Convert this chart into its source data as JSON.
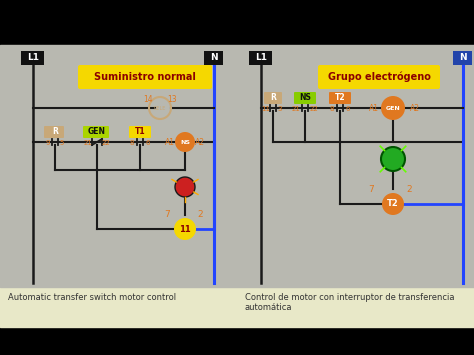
{
  "bg_color": "#000000",
  "diagram_bg": "#b8b8b0",
  "bottom_bg": "#e8e8c8",
  "title_left": "Automatic transfer switch motor control",
  "title_right": "Control de motor con interruptor de transferencia\nautomática",
  "label_suministro": "Suministro normal",
  "label_grupo": "Grupo electrógeno",
  "line_color": "#1a1a1a",
  "blue_line": "#2244ff",
  "yellow_box_color": "#f5d800",
  "green_label_color": "#88cc00",
  "orange_color": "#e07820",
  "green_color": "#22aa22",
  "red_color": "#cc2020",
  "tan_color": "#c8a878",
  "dark_red_text": "#8B0000",
  "white": "#ffffff",
  "black": "#111111"
}
